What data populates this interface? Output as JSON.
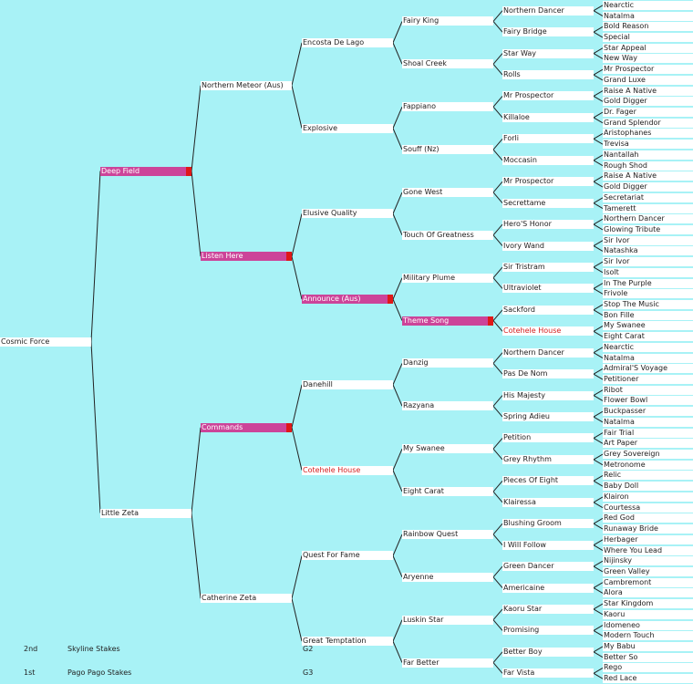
{
  "colors": {
    "background": "#a8f2f6",
    "node": "#ffffff",
    "highlight": "#cc4499",
    "marker": "#e01818",
    "duplicate_text": "#d42020",
    "line": "#222222"
  },
  "pedigree": {
    "g0": [
      "Cosmic Force"
    ],
    "g1": [
      "Deep Field",
      "Little Zeta"
    ],
    "g2": [
      "Northern Meteor (Aus)",
      "Listen Here",
      "Commands",
      "Catherine Zeta"
    ],
    "g3": [
      "Encosta De Lago",
      "Explosive",
      "Elusive Quality",
      "Announce (Aus)",
      "Danehill",
      "Cotehele House",
      "Quest For Fame",
      "Great Temptation"
    ],
    "g4": [
      "Fairy King",
      "Shoal Creek",
      "Fappiano",
      "Souff (Nz)",
      "Gone West",
      "Touch Of Greatness",
      "Military Plume",
      "Theme Song",
      "Danzig",
      "Razyana",
      "My Swanee",
      "Eight Carat",
      "Rainbow Quest",
      "Aryenne",
      "Luskin Star",
      "Far Better"
    ],
    "g5": [
      "Northern Dancer",
      "Fairy Bridge",
      "Star Way",
      "Rolls",
      "Mr Prospector",
      "Killaloe",
      "Forli",
      "Moccasin",
      "Mr Prospector",
      "Secrettame",
      "Hero'S Honor",
      "Ivory Wand",
      "Sir Tristram",
      "Ultraviolet",
      "Sackford",
      "Cotehele House",
      "Northern Dancer",
      "Pas De Nom",
      "His Majesty",
      "Spring Adieu",
      "Petition",
      "Grey Rhythm",
      "Pieces Of Eight",
      "Klairessa",
      "Blushing Groom",
      "I Will Follow",
      "Green Dancer",
      "Americaine",
      "Kaoru Star",
      "Promising",
      "Better Boy",
      "Far Vista"
    ],
    "g6": [
      "Nearctic",
      "Natalma",
      "Bold Reason",
      "Special",
      "Star Appeal",
      "New Way",
      "Mr Prospector",
      "Grand Luxe",
      "Raise A Native",
      "Gold Digger",
      "Dr. Fager",
      "Grand Splendor",
      "Aristophanes",
      "Trevisa",
      "Nantallah",
      "Rough Shod",
      "Raise A Native",
      "Gold Digger",
      "Secretariat",
      "Tamerett",
      "Northern Dancer",
      "Glowing Tribute",
      "Sir Ivor",
      "Natashka",
      "Sir Ivor",
      "Isolt",
      "In The Purple",
      "Frivole",
      "Stop The Music",
      "Bon Fille",
      "My Swanee",
      "Eight Carat",
      "Nearctic",
      "Natalma",
      "Admiral'S Voyage",
      "Petitioner",
      "Ribot",
      "Flower Bowl",
      "Buckpasser",
      "Natalma",
      "Fair Trial",
      "Art Paper",
      "Grey Sovereign",
      "Metronome",
      "Relic",
      "Baby Doll",
      "Klairon",
      "Courtessa",
      "Red God",
      "Runaway Bride",
      "Herbager",
      "Where You Lead",
      "Nijinsky",
      "Green Valley",
      "Cambremont",
      "Alora",
      "Star Kingdom",
      "Kaoru",
      "Idomeneo",
      "Modern Touch",
      "My Babu",
      "Better So",
      "Rego",
      "Red Lace"
    ]
  },
  "highlighted": [
    "g1.0",
    "g2.1",
    "g2.2",
    "g3.3",
    "g4.7"
  ],
  "duplicate_names": [
    "g3.5",
    "g5.15"
  ],
  "results": [
    {
      "place": "2nd",
      "race": "Skyline Stakes",
      "grade": "G2"
    },
    {
      "place": "1st",
      "race": "Pago Pago Stakes",
      "grade": "G3"
    }
  ]
}
